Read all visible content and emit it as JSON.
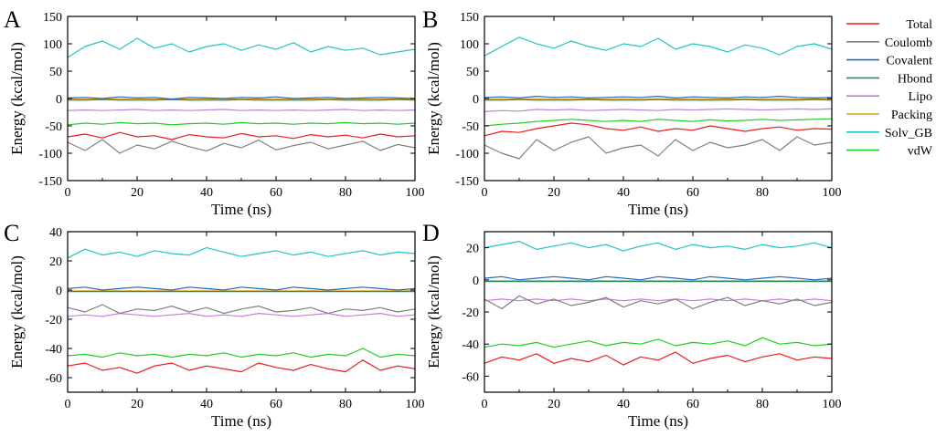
{
  "legend": [
    {
      "name": "Total",
      "color": "#ee1c1c"
    },
    {
      "name": "Coulomb",
      "color": "#7f7f7f"
    },
    {
      "name": "Covalent",
      "color": "#2266cc"
    },
    {
      "name": "Hbond",
      "color": "#2e8b57"
    },
    {
      "name": "Lipo",
      "color": "#c77ce0"
    },
    {
      "name": "Packing",
      "color": "#d9a21a"
    },
    {
      "name": "Solv_GB",
      "color": "#22c4c4"
    },
    {
      "name": "vdW",
      "color": "#22cc22"
    }
  ],
  "chart_data": [
    {
      "panel": "A",
      "type": "line",
      "xlabel": "Time (ns)",
      "ylabel": "Energy (kcal/mol)",
      "xlim": [
        0,
        100
      ],
      "ylim": [
        -150,
        150
      ],
      "xticks": [
        0,
        20,
        40,
        60,
        80,
        100
      ],
      "xtick_labels": [
        "0",
        "20",
        "40",
        "60",
        "80",
        "100"
      ],
      "yticks": [
        -150,
        -100,
        -50,
        0,
        50,
        100,
        150
      ],
      "ytick_labels": [
        "-150",
        "-100",
        "-50",
        "0",
        "50",
        "100",
        "150"
      ],
      "x": [
        0,
        5,
        10,
        15,
        20,
        25,
        30,
        35,
        40,
        45,
        50,
        55,
        60,
        65,
        70,
        75,
        80,
        85,
        90,
        95,
        100
      ],
      "series": [
        {
          "name": "Total",
          "values": [
            -70,
            -65,
            -72,
            -62,
            -70,
            -68,
            -75,
            -66,
            -70,
            -72,
            -64,
            -70,
            -68,
            -73,
            -66,
            -70,
            -67,
            -72,
            -65,
            -70,
            -68
          ]
        },
        {
          "name": "Coulomb",
          "values": [
            -80,
            -95,
            -75,
            -100,
            -85,
            -92,
            -78,
            -88,
            -96,
            -82,
            -90,
            -76,
            -94,
            -86,
            -80,
            -92,
            -85,
            -78,
            -95,
            -84,
            -90
          ]
        },
        {
          "name": "Covalent",
          "values": [
            1,
            2,
            0,
            3,
            1,
            2,
            -1,
            2,
            1,
            0,
            2,
            1,
            3,
            0,
            1,
            2,
            0,
            1,
            2,
            1,
            0
          ]
        },
        {
          "name": "Hbond",
          "values": [
            -3,
            -3,
            -2,
            -3,
            -3,
            -3,
            -2,
            -3,
            -3,
            -3,
            -2,
            -3,
            -3,
            -3,
            -3,
            -2,
            -3,
            -3,
            -3,
            -2,
            -3
          ]
        },
        {
          "name": "Lipo",
          "values": [
            -22,
            -21,
            -22,
            -21,
            -20,
            -22,
            -21,
            -22,
            -21,
            -20,
            -22,
            -21,
            -22,
            -21,
            -22,
            -21,
            -20,
            -22,
            -21,
            -22,
            -21
          ]
        },
        {
          "name": "Packing",
          "values": [
            -1,
            -1,
            -1,
            -1,
            -1,
            -1,
            -1,
            -1,
            -1,
            -1,
            -1,
            -1,
            -1,
            -1,
            -1,
            -1,
            -1,
            -1,
            -1,
            -1,
            -1
          ]
        },
        {
          "name": "Solv_GB",
          "values": [
            75,
            95,
            105,
            90,
            110,
            92,
            100,
            85,
            95,
            100,
            88,
            98,
            90,
            102,
            85,
            95,
            88,
            92,
            80,
            85,
            90
          ]
        },
        {
          "name": "vdW",
          "values": [
            -48,
            -45,
            -47,
            -44,
            -46,
            -45,
            -48,
            -46,
            -45,
            -47,
            -44,
            -46,
            -45,
            -47,
            -45,
            -46,
            -44,
            -46,
            -45,
            -47,
            -45
          ]
        }
      ]
    },
    {
      "panel": "B",
      "type": "line",
      "xlabel": "Time (ns)",
      "ylabel": "Energy (kcal/mol)",
      "xlim": [
        0,
        100
      ],
      "ylim": [
        -150,
        150
      ],
      "xticks": [
        0,
        20,
        40,
        60,
        80,
        100
      ],
      "xtick_labels": [
        "0",
        "20",
        "40",
        "60",
        "80",
        "100"
      ],
      "yticks": [
        -150,
        -100,
        -50,
        0,
        50,
        100,
        150
      ],
      "ytick_labels": [
        "-150",
        "-100",
        "-50",
        "0",
        "50",
        "100",
        "150"
      ],
      "x": [
        0,
        5,
        10,
        15,
        20,
        25,
        30,
        35,
        40,
        45,
        50,
        55,
        60,
        65,
        70,
        75,
        80,
        85,
        90,
        95,
        100
      ],
      "series": [
        {
          "name": "Total",
          "values": [
            -68,
            -60,
            -62,
            -55,
            -50,
            -45,
            -48,
            -55,
            -58,
            -52,
            -60,
            -55,
            -58,
            -50,
            -55,
            -60,
            -55,
            -52,
            -58,
            -55,
            -56
          ]
        },
        {
          "name": "Coulomb",
          "values": [
            -85,
            -100,
            -110,
            -75,
            -95,
            -80,
            -70,
            -100,
            -90,
            -85,
            -105,
            -75,
            -95,
            -80,
            -90,
            -85,
            -75,
            -95,
            -70,
            -85,
            -80
          ]
        },
        {
          "name": "Covalent",
          "values": [
            2,
            3,
            1,
            4,
            2,
            3,
            1,
            2,
            3,
            2,
            4,
            1,
            3,
            2,
            1,
            3,
            2,
            4,
            2,
            1,
            2
          ]
        },
        {
          "name": "Hbond",
          "values": [
            -3,
            -3,
            -2,
            -3,
            -3,
            -3,
            -2,
            -3,
            -3,
            -3,
            -2,
            -3,
            -3,
            -3,
            -3,
            -2,
            -3,
            -3,
            -3,
            -2,
            -3
          ]
        },
        {
          "name": "Lipo",
          "values": [
            -24,
            -22,
            -23,
            -20,
            -21,
            -20,
            -22,
            -21,
            -20,
            -21,
            -22,
            -20,
            -21,
            -20,
            -19,
            -20,
            -21,
            -20,
            -19,
            -20,
            -19
          ]
        },
        {
          "name": "Packing",
          "values": [
            -1,
            -1,
            -1,
            -1,
            -1,
            -1,
            -1,
            -1,
            -1,
            -1,
            -1,
            -1,
            -1,
            -1,
            -1,
            -1,
            -1,
            -1,
            -1,
            -1,
            -1
          ]
        },
        {
          "name": "Solv_GB",
          "values": [
            78,
            95,
            112,
            100,
            92,
            105,
            95,
            88,
            100,
            95,
            110,
            90,
            100,
            95,
            85,
            98,
            92,
            80,
            95,
            100,
            90
          ]
        },
        {
          "name": "vdW",
          "values": [
            -50,
            -47,
            -45,
            -42,
            -40,
            -38,
            -40,
            -42,
            -40,
            -42,
            -38,
            -40,
            -42,
            -39,
            -41,
            -40,
            -38,
            -40,
            -39,
            -38,
            -37
          ]
        }
      ]
    },
    {
      "panel": "C",
      "type": "line",
      "xlabel": "Time (ns)",
      "ylabel": "Energy (kcal/mol)",
      "xlim": [
        0,
        100
      ],
      "ylim": [
        -70,
        40
      ],
      "xticks": [
        0,
        20,
        40,
        60,
        80,
        100
      ],
      "xtick_labels": [
        "0",
        "20",
        "40",
        "60",
        "80",
        "100"
      ],
      "yticks": [
        -60,
        -40,
        -20,
        0,
        20,
        40
      ],
      "ytick_labels": [
        "-60",
        "-40",
        "-20",
        "0",
        "20",
        "40"
      ],
      "x": [
        0,
        5,
        10,
        15,
        20,
        25,
        30,
        35,
        40,
        45,
        50,
        55,
        60,
        65,
        70,
        75,
        80,
        85,
        90,
        95,
        100
      ],
      "series": [
        {
          "name": "Total",
          "values": [
            -52,
            -50,
            -55,
            -53,
            -57,
            -52,
            -50,
            -55,
            -52,
            -54,
            -56,
            -50,
            -53,
            -55,
            -51,
            -54,
            -56,
            -48,
            -55,
            -52,
            -54
          ]
        },
        {
          "name": "Coulomb",
          "values": [
            -12,
            -15,
            -10,
            -16,
            -13,
            -14,
            -11,
            -15,
            -12,
            -16,
            -13,
            -11,
            -15,
            -14,
            -12,
            -16,
            -13,
            -14,
            -12,
            -15,
            -13
          ]
        },
        {
          "name": "Covalent",
          "values": [
            1,
            2,
            0,
            1,
            2,
            1,
            0,
            2,
            1,
            0,
            2,
            1,
            0,
            2,
            1,
            0,
            1,
            2,
            1,
            0,
            1
          ]
        },
        {
          "name": "Hbond",
          "values": [
            -1,
            -1,
            -1,
            -1,
            -1,
            -1,
            -1,
            -1,
            -1,
            -1,
            -1,
            -1,
            -1,
            -1,
            -1,
            -1,
            -1,
            -1,
            -1,
            -1,
            -1
          ]
        },
        {
          "name": "Lipo",
          "values": [
            -18,
            -17,
            -18,
            -16,
            -17,
            -18,
            -17,
            -16,
            -18,
            -17,
            -18,
            -16,
            -17,
            -18,
            -17,
            -16,
            -18,
            -17,
            -16,
            -18,
            -17
          ]
        },
        {
          "name": "Packing",
          "values": [
            -0.5,
            -0.5,
            -0.5,
            -0.5,
            -0.5,
            -0.5,
            -0.5,
            -0.5,
            -0.5,
            -0.5,
            -0.5,
            -0.5,
            -0.5,
            -0.5,
            -0.5,
            -0.5,
            -0.5,
            -0.5,
            -0.5,
            -0.5,
            -0.5
          ]
        },
        {
          "name": "Solv_GB",
          "values": [
            22,
            28,
            24,
            26,
            23,
            27,
            25,
            24,
            29,
            26,
            23,
            25,
            27,
            24,
            26,
            23,
            25,
            27,
            24,
            26,
            25
          ]
        },
        {
          "name": "vdW",
          "values": [
            -45,
            -44,
            -46,
            -43,
            -45,
            -44,
            -46,
            -44,
            -45,
            -43,
            -46,
            -44,
            -45,
            -43,
            -46,
            -44,
            -45,
            -40,
            -46,
            -44,
            -45
          ]
        }
      ]
    },
    {
      "panel": "D",
      "type": "line",
      "xlabel": "Time (ns)",
      "ylabel": "Energy (kcal/mol)",
      "xlim": [
        0,
        100
      ],
      "ylim": [
        -70,
        30
      ],
      "xticks": [
        0,
        20,
        40,
        60,
        80,
        100
      ],
      "xtick_labels": [
        "0",
        "20",
        "40",
        "60",
        "80",
        "100"
      ],
      "yticks": [
        -60,
        -40,
        -20,
        0,
        20
      ],
      "ytick_labels": [
        "-60",
        "-40",
        "-20",
        "0",
        "20"
      ],
      "x": [
        0,
        5,
        10,
        15,
        20,
        25,
        30,
        35,
        40,
        45,
        50,
        55,
        60,
        65,
        70,
        75,
        80,
        85,
        90,
        95,
        100
      ],
      "series": [
        {
          "name": "Total",
          "values": [
            -52,
            -48,
            -50,
            -46,
            -52,
            -49,
            -51,
            -47,
            -53,
            -48,
            -50,
            -45,
            -52,
            -49,
            -47,
            -51,
            -48,
            -46,
            -50,
            -48,
            -49
          ]
        },
        {
          "name": "Coulomb",
          "values": [
            -12,
            -18,
            -10,
            -15,
            -12,
            -16,
            -14,
            -11,
            -17,
            -13,
            -15,
            -12,
            -18,
            -14,
            -11,
            -16,
            -13,
            -15,
            -12,
            -16,
            -14
          ]
        },
        {
          "name": "Covalent",
          "values": [
            1,
            2,
            0,
            1,
            2,
            1,
            0,
            2,
            1,
            0,
            2,
            1,
            0,
            2,
            1,
            0,
            1,
            2,
            1,
            0,
            1
          ]
        },
        {
          "name": "Hbond",
          "values": [
            -1,
            -1,
            -1,
            -1,
            -1,
            -1,
            -1,
            -1,
            -1,
            -1,
            -1,
            -1,
            -1,
            -1,
            -1,
            -1,
            -1,
            -1,
            -1,
            -1,
            -1
          ]
        },
        {
          "name": "Lipo",
          "values": [
            -13,
            -12,
            -13,
            -12,
            -13,
            -12,
            -13,
            -12,
            -13,
            -12,
            -13,
            -12,
            -13,
            -12,
            -13,
            -12,
            -13,
            -12,
            -13,
            -12,
            -13
          ]
        },
        {
          "name": "Packing",
          "values": [
            -0.5,
            -0.5,
            -0.5,
            -0.5,
            -0.5,
            -0.5,
            -0.5,
            -0.5,
            -0.5,
            -0.5,
            -0.5,
            -0.5,
            -0.5,
            -0.5,
            -0.5,
            -0.5,
            -0.5,
            -0.5,
            -0.5,
            -0.5,
            -0.5
          ]
        },
        {
          "name": "Solv_GB",
          "values": [
            20,
            22,
            24,
            19,
            21,
            23,
            20,
            22,
            18,
            21,
            23,
            19,
            22,
            20,
            21,
            19,
            22,
            20,
            21,
            23,
            20
          ]
        },
        {
          "name": "vdW",
          "values": [
            -42,
            -40,
            -41,
            -39,
            -42,
            -40,
            -38,
            -41,
            -39,
            -40,
            -37,
            -41,
            -39,
            -40,
            -38,
            -41,
            -36,
            -40,
            -39,
            -41,
            -40
          ]
        }
      ]
    }
  ]
}
